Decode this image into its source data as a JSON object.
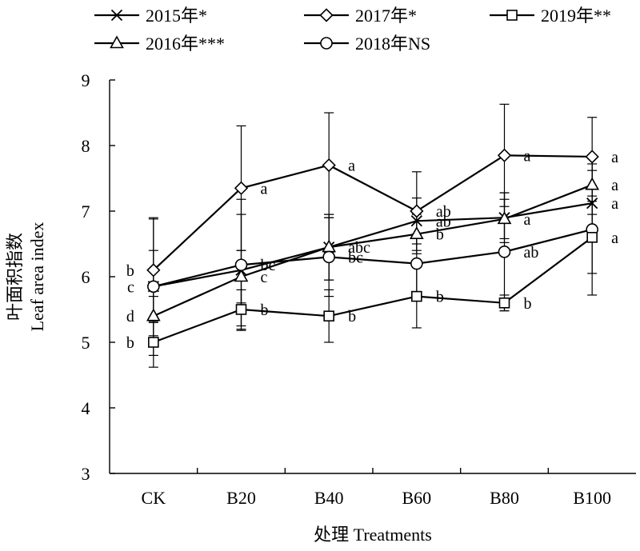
{
  "chart_data": {
    "type": "line",
    "xlabel": "处理 Treatments",
    "ylabel_zh": "叶面积指数",
    "ylabel_en": "Leaf area index",
    "categories": [
      "CK",
      "B20",
      "B40",
      "B60",
      "B80",
      "B100"
    ],
    "ylim": [
      3,
      9
    ],
    "yticks": [
      3,
      4,
      5,
      6,
      7,
      8,
      9
    ],
    "grid": false,
    "legend_position": "top",
    "series": [
      {
        "name": "2015年*",
        "marker": "x",
        "values": [
          5.85,
          6.1,
          6.45,
          6.85,
          6.9,
          7.12
        ],
        "errors": [
          0.55,
          0.85,
          0.5,
          0.35,
          0.38,
          0.5
        ],
        "labels": [
          "c",
          "",
          "",
          "ab",
          "",
          "a"
        ]
      },
      {
        "name": "2016年***",
        "marker": "triangle",
        "values": [
          5.4,
          6.0,
          6.45,
          6.65,
          6.88,
          7.4
        ],
        "errors": [
          0.3,
          0.4,
          0.5,
          0.3,
          0.3,
          0.45
        ],
        "labels": [
          "d",
          "c",
          "abc",
          "b",
          "a",
          "a"
        ]
      },
      {
        "name": "2017年*",
        "marker": "diamond",
        "values": [
          6.1,
          7.35,
          7.7,
          7.0,
          7.85,
          7.83
        ],
        "errors": [
          0.78,
          0.95,
          0.8,
          0.6,
          0.78,
          0.6
        ],
        "labels": [
          "b",
          "a",
          "a",
          "ab",
          "a",
          "a"
        ]
      },
      {
        "name": "2018年NS",
        "marker": "circle",
        "values": [
          5.85,
          6.18,
          6.3,
          6.2,
          6.38,
          6.72
        ],
        "errors": [
          1.05,
          1.0,
          0.6,
          0.45,
          0.9,
          1.0
        ],
        "labels": [
          "",
          "bc",
          "bc",
          "",
          "ab",
          ""
        ]
      },
      {
        "name": "2019年**",
        "marker": "square",
        "values": [
          5.0,
          5.5,
          5.4,
          5.7,
          5.6,
          6.6
        ],
        "errors": [
          0.38,
          0.3,
          0.4,
          0.48,
          0.12,
          0.55
        ],
        "labels": [
          "b",
          "b",
          "b",
          "b",
          "b",
          "a"
        ]
      }
    ],
    "colors": {
      "line": "#000000",
      "background": "#ffffff"
    }
  }
}
